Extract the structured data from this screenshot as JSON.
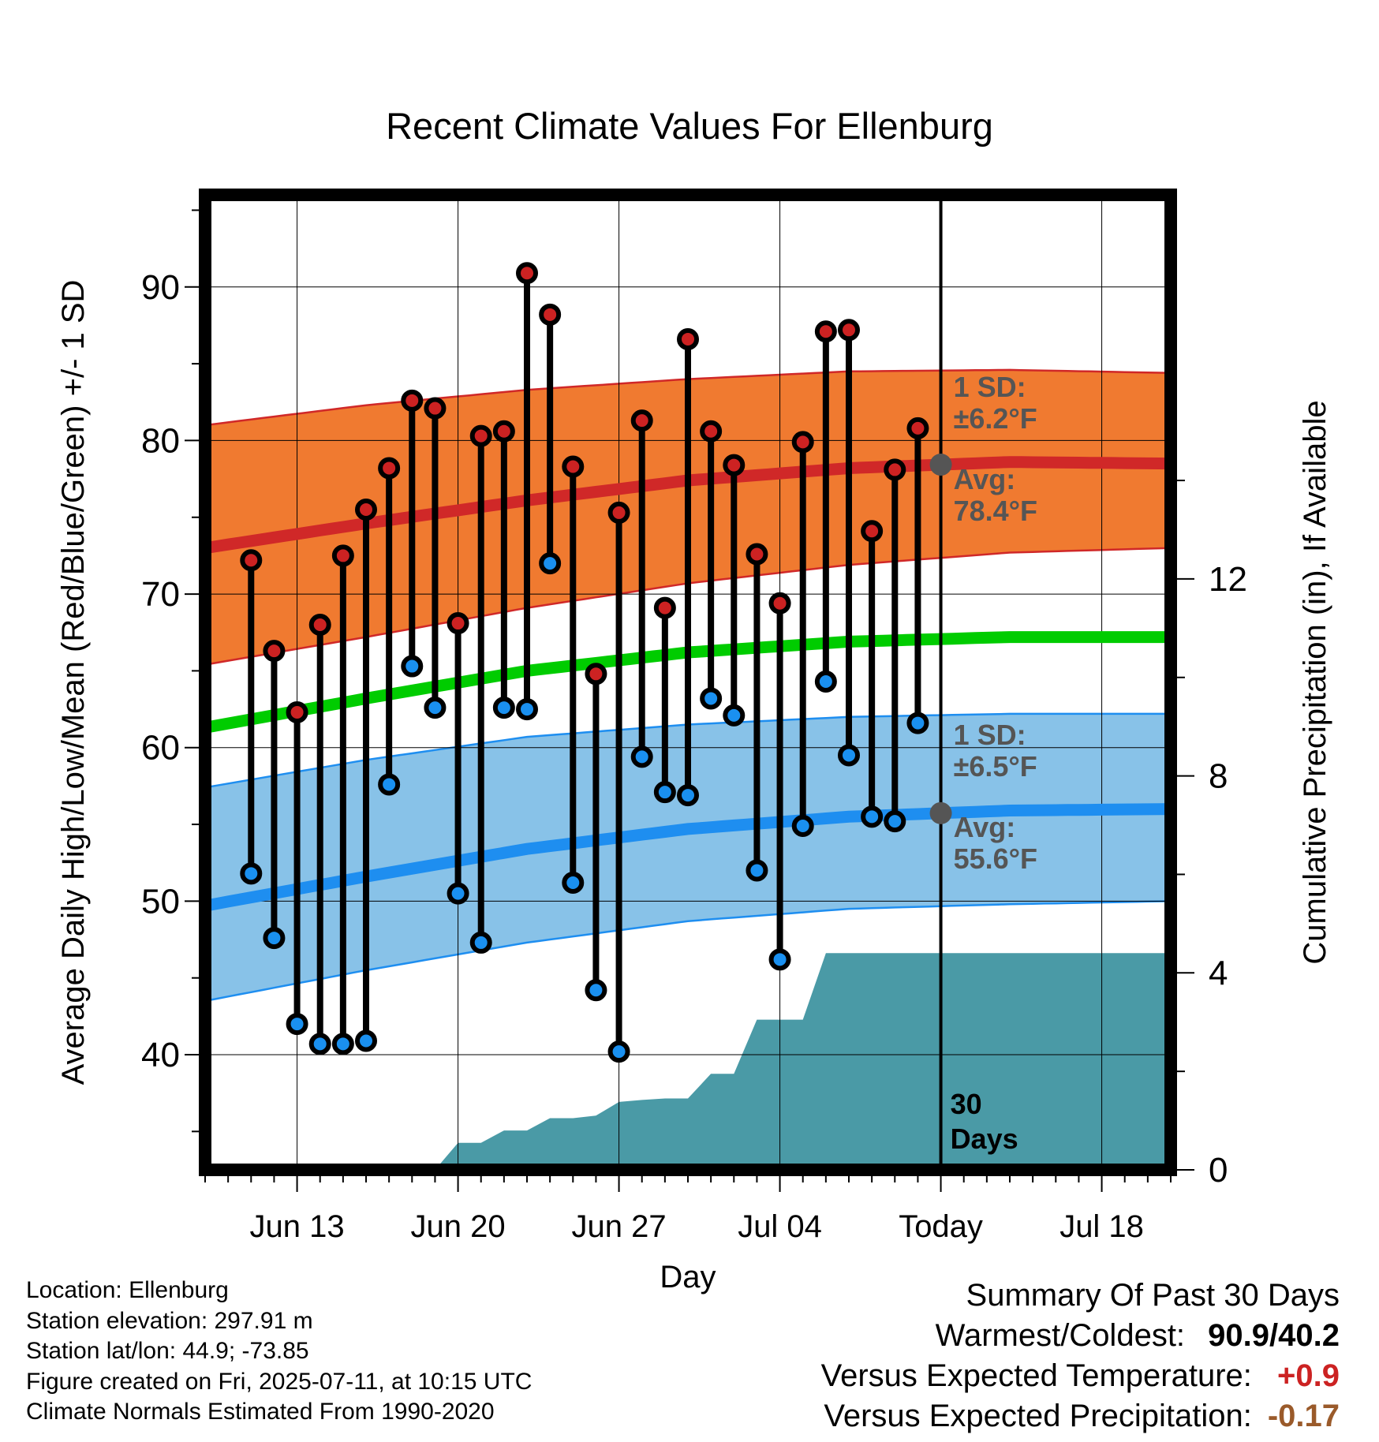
{
  "title": "Recent Climate Values For Ellenburg",
  "footer": {
    "location": "Location: Ellenburg",
    "elevation": "Station elevation: 297.91 m",
    "latlon": "Station lat/lon: 44.9; -73.85",
    "created": "Figure created on Fri, 2025-07-11, at 10:15 UTC",
    "normals": "Climate Normals Estimated From 1990-2020"
  },
  "summary": {
    "heading": "Summary Of Past 30 Days",
    "warm_cold_label": "Warmest/Coldest:",
    "warm_cold_value": "90.9/40.2",
    "temp_label": "Versus Expected Temperature:",
    "temp_value": "+0.9",
    "precip_label": "Versus Expected Precipitation:",
    "precip_value": "-0.17",
    "colors": {
      "temp_value": "#cc2222",
      "precip_value": "#9a5a2a"
    }
  },
  "chart_data": {
    "type": "line",
    "title": "Recent Climate Values For Ellenburg",
    "xlabel": "Day",
    "ylabel": "Average Daily High/Low/Mean (Red/Blue/Green) +/- 1 SD",
    "y2label": "Cumulative Precipitation (in), If Available",
    "ylim": [
      32.5,
      96
    ],
    "y2lim": [
      0,
      19.8
    ],
    "yticks": [
      40,
      50,
      60,
      70,
      80,
      90
    ],
    "y2ticks": [
      0,
      4,
      8,
      12
    ],
    "xlim": [
      "2025-06-09",
      "2025-07-21"
    ],
    "xticks": [
      {
        "date": "2025-06-13",
        "label": "Jun 13"
      },
      {
        "date": "2025-06-20",
        "label": "Jun 20"
      },
      {
        "date": "2025-06-27",
        "label": "Jun 27"
      },
      {
        "date": "2025-07-04",
        "label": "Jul 04"
      },
      {
        "date": "2025-07-11",
        "label": "Today"
      },
      {
        "date": "2025-07-18",
        "label": "Jul 18"
      }
    ],
    "grid": true,
    "today": "2025-07-11",
    "today_label": "30 Days",
    "daily": {
      "dates": [
        "2025-06-11",
        "2025-06-12",
        "2025-06-13",
        "2025-06-14",
        "2025-06-15",
        "2025-06-16",
        "2025-06-17",
        "2025-06-18",
        "2025-06-19",
        "2025-06-20",
        "2025-06-21",
        "2025-06-22",
        "2025-06-23",
        "2025-06-24",
        "2025-06-25",
        "2025-06-26",
        "2025-06-27",
        "2025-06-28",
        "2025-06-29",
        "2025-06-30",
        "2025-07-01",
        "2025-07-02",
        "2025-07-03",
        "2025-07-04",
        "2025-07-05",
        "2025-07-06",
        "2025-07-07",
        "2025-07-08",
        "2025-07-09",
        "2025-07-10"
      ],
      "highs": [
        72.2,
        66.3,
        62.3,
        68.0,
        72.5,
        75.5,
        78.2,
        82.6,
        82.1,
        68.1,
        80.3,
        80.6,
        90.9,
        88.2,
        78.3,
        64.8,
        75.3,
        81.3,
        69.1,
        86.6,
        80.6,
        78.4,
        72.6,
        69.4,
        79.9,
        87.1,
        87.2,
        74.1,
        78.1,
        80.8
      ],
      "lows": [
        51.8,
        47.6,
        42.0,
        40.7,
        40.7,
        40.9,
        57.6,
        65.3,
        62.6,
        50.5,
        47.3,
        62.6,
        62.5,
        72.0,
        51.2,
        44.2,
        40.2,
        59.4,
        57.1,
        56.9,
        63.2,
        62.1,
        52.0,
        46.2,
        54.9,
        64.3,
        59.5,
        55.5,
        55.2,
        61.6
      ]
    },
    "normals": {
      "dates": [
        "2025-06-09",
        "2025-06-16",
        "2025-06-23",
        "2025-06-30",
        "2025-07-07",
        "2025-07-14",
        "2025-07-21"
      ],
      "high_avg": [
        73.0,
        74.6,
        76.1,
        77.4,
        78.2,
        78.6,
        78.5
      ],
      "high_sd_upper": [
        81.0,
        82.3,
        83.3,
        84.0,
        84.5,
        84.6,
        84.4
      ],
      "high_sd_lower": [
        65.4,
        67.2,
        69.1,
        70.7,
        71.9,
        72.7,
        73.0
      ],
      "mean": [
        61.3,
        63.2,
        65.0,
        66.2,
        66.9,
        67.2,
        67.2
      ],
      "low_avg": [
        49.7,
        51.6,
        53.4,
        54.7,
        55.5,
        55.9,
        56.0
      ],
      "low_sd_upper": [
        57.4,
        59.2,
        60.7,
        61.5,
        62.0,
        62.2,
        62.2
      ],
      "low_sd_lower": [
        43.5,
        45.5,
        47.3,
        48.7,
        49.5,
        49.8,
        50.0
      ]
    },
    "annotations": {
      "high_sd": "1 SD:\n±6.2°F",
      "high_avg": "Avg:\n78.4°F",
      "low_sd": "1 SD:\n±6.5°F",
      "low_avg": "Avg:\n55.6°F"
    },
    "precip": {
      "dates": [
        "2025-06-18",
        "2025-06-19",
        "2025-06-20",
        "2025-06-21",
        "2025-06-22",
        "2025-06-23",
        "2025-06-24",
        "2025-06-25",
        "2025-06-26",
        "2025-06-27",
        "2025-06-28",
        "2025-06-29",
        "2025-06-30",
        "2025-07-01",
        "2025-07-02",
        "2025-07-03",
        "2025-07-04",
        "2025-07-05",
        "2025-07-06",
        "2025-07-07",
        "2025-07-11",
        "2025-07-21"
      ],
      "cumulative": [
        0.0,
        0.0,
        0.55,
        0.55,
        0.8,
        0.8,
        1.05,
        1.05,
        1.1,
        1.38,
        1.42,
        1.45,
        1.45,
        1.95,
        1.95,
        3.05,
        3.05,
        3.05,
        4.4,
        4.4,
        4.4,
        4.4
      ]
    },
    "colors": {
      "high_band": "#f07a30",
      "high_line": "#d02828",
      "low_band": "#88c2e8",
      "low_line": "#1e8ef0",
      "mean_line": "#00cc00",
      "precip": "#4a9aa6",
      "high_dot": "#cc2222",
      "low_dot": "#1a90f0",
      "annotation": "#555555"
    }
  }
}
